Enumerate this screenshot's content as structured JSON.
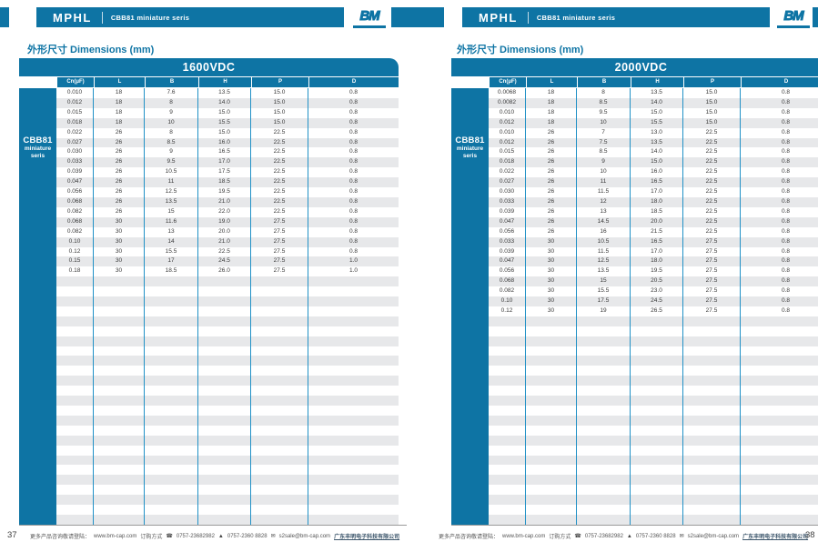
{
  "header": {
    "brand": "MPHL",
    "series": "CBB81 miniature seris",
    "logo_text": "BM"
  },
  "section_title": "外形尺寸 Dimensions (mm)",
  "side_label": {
    "line1": "CBB81",
    "line2": "miniature",
    "line3": "seris"
  },
  "columns": [
    "Cn(μF)",
    "L",
    "B",
    "H",
    "P",
    "D"
  ],
  "footer": {
    "visit_prefix": "更多产品咨询敬请登陆：",
    "website": "www.bm-cap.com",
    "order_label": "订购方式",
    "phone": "0757-23682982",
    "fax": "0757-2360 8828",
    "email": "s2sale@bm-cap.com",
    "company": "广东丰明电子科技有限公司",
    "icons": {
      "phone": "☎",
      "fax": "▲",
      "mail": "✉"
    }
  },
  "colors": {
    "primary_blue": "#0e74a4",
    "separator_blue": "#2191c6",
    "stripe_gray": "#e7e8ea"
  },
  "left": {
    "page_number": "37",
    "table_title": "1600VDC",
    "total_rows": 44,
    "rows": [
      [
        "0.010",
        "18",
        "7.6",
        "13.5",
        "15.0",
        "0.8"
      ],
      [
        "0.012",
        "18",
        "8",
        "14.0",
        "15.0",
        "0.8"
      ],
      [
        "0.015",
        "18",
        "9",
        "15.0",
        "15.0",
        "0.8"
      ],
      [
        "0.018",
        "18",
        "10",
        "15.5",
        "15.0",
        "0.8"
      ],
      [
        "0.022",
        "26",
        "8",
        "15.0",
        "22.5",
        "0.8"
      ],
      [
        "0.027",
        "26",
        "8.5",
        "16.0",
        "22.5",
        "0.8"
      ],
      [
        "0.030",
        "26",
        "9",
        "16.5",
        "22.5",
        "0.8"
      ],
      [
        "0.033",
        "26",
        "9.5",
        "17.0",
        "22.5",
        "0.8"
      ],
      [
        "0.039",
        "26",
        "10.5",
        "17.5",
        "22.5",
        "0.8"
      ],
      [
        "0.047",
        "26",
        "11",
        "18.5",
        "22.5",
        "0.8"
      ],
      [
        "0.056",
        "26",
        "12.5",
        "19.5",
        "22.5",
        "0.8"
      ],
      [
        "0.068",
        "26",
        "13.5",
        "21.0",
        "22.5",
        "0.8"
      ],
      [
        "0.082",
        "26",
        "15",
        "22.0",
        "22.5",
        "0.8"
      ],
      [
        "0.068",
        "30",
        "11.6",
        "19.0",
        "27.5",
        "0.8"
      ],
      [
        "0.082",
        "30",
        "13",
        "20.0",
        "27.5",
        "0.8"
      ],
      [
        "0.10",
        "30",
        "14",
        "21.0",
        "27.5",
        "0.8"
      ],
      [
        "0.12",
        "30",
        "15.5",
        "22.5",
        "27.5",
        "0.8"
      ],
      [
        "0.15",
        "30",
        "17",
        "24.5",
        "27.5",
        "1.0"
      ],
      [
        "0.18",
        "30",
        "18.5",
        "26.0",
        "27.5",
        "1.0"
      ]
    ]
  },
  "right": {
    "page_number": "38",
    "table_title": "2000VDC",
    "total_rows": 44,
    "rows": [
      [
        "0.0068",
        "18",
        "8",
        "13.5",
        "15.0",
        "0.8"
      ],
      [
        "0.0082",
        "18",
        "8.5",
        "14.0",
        "15.0",
        "0.8"
      ],
      [
        "0.010",
        "18",
        "9.5",
        "15.0",
        "15.0",
        "0.8"
      ],
      [
        "0.012",
        "18",
        "10",
        "15.5",
        "15.0",
        "0.8"
      ],
      [
        "0.010",
        "26",
        "7",
        "13.0",
        "22.5",
        "0.8"
      ],
      [
        "0.012",
        "26",
        "7.5",
        "13.5",
        "22.5",
        "0.8"
      ],
      [
        "0.015",
        "26",
        "8.5",
        "14.0",
        "22.5",
        "0.8"
      ],
      [
        "0.018",
        "26",
        "9",
        "15.0",
        "22.5",
        "0.8"
      ],
      [
        "0.022",
        "26",
        "10",
        "16.0",
        "22.5",
        "0.8"
      ],
      [
        "0.027",
        "26",
        "11",
        "16.5",
        "22.5",
        "0.8"
      ],
      [
        "0.030",
        "26",
        "11.5",
        "17.0",
        "22.5",
        "0.8"
      ],
      [
        "0.033",
        "26",
        "12",
        "18.0",
        "22.5",
        "0.8"
      ],
      [
        "0.039",
        "26",
        "13",
        "18.5",
        "22.5",
        "0.8"
      ],
      [
        "0.047",
        "26",
        "14.5",
        "20.0",
        "22.5",
        "0.8"
      ],
      [
        "0.056",
        "26",
        "16",
        "21.5",
        "22.5",
        "0.8"
      ],
      [
        "0.033",
        "30",
        "10.5",
        "16.5",
        "27.5",
        "0.8"
      ],
      [
        "0.039",
        "30",
        "11.5",
        "17.0",
        "27.5",
        "0.8"
      ],
      [
        "0.047",
        "30",
        "12.5",
        "18.0",
        "27.5",
        "0.8"
      ],
      [
        "0.056",
        "30",
        "13.5",
        "19.5",
        "27.5",
        "0.8"
      ],
      [
        "0.068",
        "30",
        "15",
        "20.5",
        "27.5",
        "0.8"
      ],
      [
        "0.082",
        "30",
        "15.5",
        "23.0",
        "27.5",
        "0.8"
      ],
      [
        "0.10",
        "30",
        "17.5",
        "24.5",
        "27.5",
        "0.8"
      ],
      [
        "0.12",
        "30",
        "19",
        "26.5",
        "27.5",
        "0.8"
      ]
    ]
  }
}
